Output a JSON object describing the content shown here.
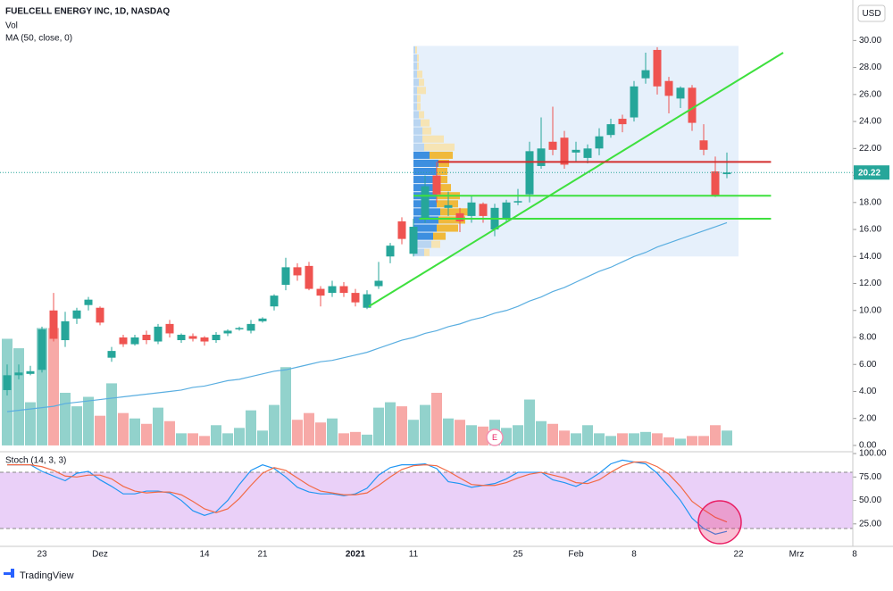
{
  "chart_data": {
    "type": "candlestick",
    "title": "FUELCELL ENERGY INC, 1D, NASDAQ",
    "currency": "USD",
    "brand": "TradingView",
    "categories": [
      null,
      null,
      null,
      "23",
      null,
      null,
      null,
      null,
      "Dez",
      null,
      null,
      null,
      null,
      null,
      null,
      null,
      null,
      "14",
      null,
      null,
      null,
      null,
      "21",
      null,
      null,
      null,
      null,
      null,
      null,
      null,
      "2021",
      null,
      null,
      null,
      null,
      "11",
      null,
      null,
      null,
      null,
      null,
      null,
      null,
      null,
      "25",
      null,
      null,
      null,
      null,
      "Feb",
      null,
      null,
      null,
      null,
      "8",
      null,
      null,
      null,
      null,
      null,
      null,
      null,
      null,
      "22",
      null,
      null,
      null,
      null,
      "Mrz",
      null,
      null,
      null,
      null,
      "8"
    ],
    "up_color": "#26a69a",
    "down_color": "#ef5350",
    "ohlc": {
      "open": [
        4.1,
        5.2,
        5.3,
        5.6,
        10.0,
        7.8,
        9.4,
        10.4,
        10.2,
        6.5,
        8.0,
        7.5,
        8.2,
        7.7,
        9.0,
        7.8,
        8.1,
        8.0,
        7.8,
        8.3,
        8.6,
        8.5,
        9.2,
        10.3,
        11.9,
        13.2,
        13.3,
        11.6,
        11.3,
        11.8,
        11.3,
        10.2,
        11.8,
        14.0,
        16.6,
        14.2,
        16.8,
        20.0,
        17.6,
        17.2,
        17.0,
        17.9,
        16.0,
        16.8,
        18.0,
        18.6,
        20.7,
        22.5,
        22.8,
        21.7,
        21.3,
        22.0,
        23.0,
        24.2,
        24.3,
        27.2,
        29.3,
        27.0,
        25.7,
        26.5,
        22.6,
        20.3,
        20.1,
        null,
        null,
        null,
        null,
        null,
        null,
        null,
        null,
        null,
        null,
        null
      ],
      "high": [
        6.0,
        6.0,
        5.9,
        8.8,
        11.3,
        9.9,
        10.2,
        11.0,
        10.3,
        7.3,
        8.2,
        8.2,
        8.5,
        9.0,
        9.3,
        8.3,
        8.3,
        8.1,
        8.4,
        8.6,
        8.8,
        9.3,
        9.5,
        11.2,
        13.9,
        13.5,
        13.6,
        11.8,
        12.2,
        12.1,
        11.6,
        11.5,
        13.6,
        15.0,
        16.9,
        16.8,
        20.0,
        21.0,
        18.8,
        17.6,
        18.5,
        18.0,
        17.9,
        18.2,
        19.0,
        22.5,
        24.3,
        25.1,
        23.3,
        22.5,
        22.3,
        23.5,
        24.2,
        24.5,
        27.0,
        29.1,
        29.5,
        27.3,
        26.6,
        26.7,
        23.8,
        21.4,
        21.7,
        null,
        null,
        null,
        null,
        null,
        null,
        null,
        null,
        null,
        null,
        null
      ],
      "low": [
        3.7,
        4.9,
        5.2,
        5.4,
        7.7,
        7.3,
        9.0,
        10.0,
        8.9,
        6.2,
        7.3,
        7.4,
        7.5,
        7.5,
        8.0,
        7.6,
        7.7,
        7.4,
        7.6,
        8.1,
        8.5,
        8.3,
        9.1,
        10.0,
        11.5,
        12.2,
        11.5,
        10.3,
        11.0,
        11.0,
        10.3,
        10.1,
        11.6,
        13.5,
        14.9,
        14.0,
        16.5,
        18.0,
        17.0,
        15.8,
        16.5,
        16.5,
        15.5,
        16.5,
        17.8,
        18.0,
        20.5,
        21.5,
        20.5,
        21.0,
        20.9,
        21.5,
        22.8,
        23.2,
        24.0,
        26.8,
        26.0,
        24.6,
        25.0,
        23.3,
        21.5,
        18.4,
        19.8,
        null,
        null,
        null,
        null,
        null,
        null,
        null,
        null,
        null,
        null,
        null
      ],
      "close": [
        5.2,
        5.4,
        5.5,
        8.6,
        7.9,
        9.2,
        10.0,
        10.8,
        9.1,
        7.0,
        7.5,
        8.0,
        7.8,
        8.8,
        8.3,
        8.2,
        7.9,
        7.7,
        8.2,
        8.5,
        8.7,
        9.0,
        9.4,
        11.1,
        13.2,
        12.6,
        11.6,
        11.1,
        11.8,
        11.3,
        10.6,
        11.2,
        12.2,
        14.8,
        15.3,
        16.2,
        19.2,
        18.6,
        17.8,
        16.6,
        18.0,
        17.0,
        17.6,
        18.0,
        18.1,
        21.8,
        22.0,
        21.9,
        20.8,
        21.9,
        22.0,
        22.9,
        23.8,
        23.8,
        26.6,
        27.8,
        26.6,
        25.9,
        26.5,
        23.9,
        21.9,
        18.5,
        20.22,
        null,
        null,
        null,
        null,
        null,
        null,
        null,
        null,
        null,
        null,
        null
      ]
    },
    "volume": {
      "name": "Vol",
      "values": [
        7.9,
        7.2,
        3.2,
        8.7,
        8.7,
        3.9,
        2.9,
        3.6,
        2.2,
        4.6,
        2.4,
        2.0,
        1.6,
        2.8,
        1.8,
        0.9,
        0.9,
        0.7,
        1.5,
        0.9,
        1.3,
        2.6,
        1.1,
        3.0,
        5.8,
        1.9,
        2.4,
        1.7,
        2.0,
        0.9,
        1.0,
        0.8,
        2.8,
        3.2,
        2.9,
        1.9,
        3.0,
        3.9,
        2.0,
        1.9,
        1.5,
        1.4,
        1.9,
        1.3,
        1.5,
        3.4,
        1.8,
        1.6,
        1.1,
        0.9,
        1.5,
        0.9,
        0.7,
        0.9,
        0.9,
        1.0,
        0.9,
        0.6,
        0.5,
        0.7,
        0.7,
        1.5,
        1.1,
        null,
        null,
        null,
        null,
        null,
        null,
        null,
        null,
        null,
        null,
        null
      ]
    },
    "ma": {
      "name": "MA (50, close, 0)",
      "color": "#5aaee0",
      "values": [
        2.5,
        2.6,
        2.7,
        2.8,
        2.9,
        3.1,
        3.2,
        3.3,
        3.4,
        3.5,
        3.6,
        3.7,
        3.8,
        3.9,
        4.0,
        4.1,
        4.3,
        4.4,
        4.6,
        4.8,
        4.9,
        5.1,
        5.3,
        5.5,
        5.6,
        5.8,
        6.0,
        6.2,
        6.3,
        6.5,
        6.7,
        6.9,
        7.2,
        7.5,
        7.8,
        8.0,
        8.3,
        8.5,
        8.8,
        9.0,
        9.3,
        9.5,
        9.8,
        10.0,
        10.3,
        10.7,
        11.0,
        11.4,
        11.7,
        12.1,
        12.5,
        12.9,
        13.2,
        13.6,
        14.0,
        14.3,
        14.7,
        15.0,
        15.3,
        15.6,
        15.9,
        16.2,
        16.5,
        null,
        null,
        null,
        null,
        null,
        null,
        null,
        null,
        null,
        null,
        null
      ]
    },
    "ylim": [
      -0.4,
      33.0
    ],
    "yticks": [
      {
        "value": 0,
        "label": "0.00"
      },
      {
        "value": 2,
        "label": "2.00"
      },
      {
        "value": 4,
        "label": "4.00"
      },
      {
        "value": 6,
        "label": "6.00"
      },
      {
        "value": 8,
        "label": "8.00"
      },
      {
        "value": 10,
        "label": "10.00"
      },
      {
        "value": 12,
        "label": "12.00"
      },
      {
        "value": 14,
        "label": "14.00"
      },
      {
        "value": 16,
        "label": "16.00"
      },
      {
        "value": 18,
        "label": "18.00"
      },
      {
        "value": 20,
        "label": "20.00"
      },
      {
        "value": 22,
        "label": "22.00"
      },
      {
        "value": 24,
        "label": "24.00"
      },
      {
        "value": 26,
        "label": "26.00"
      },
      {
        "value": 28,
        "label": "28.00"
      },
      {
        "value": 30,
        "label": "30.00"
      }
    ],
    "last_price": 20.22,
    "volume_profile": {
      "x_range": [
        35,
        63
      ],
      "row_size": 0.6,
      "value_area": [
        15.2,
        21.8
      ],
      "background": "#e6f0fb",
      "up_color": "#3d8fe0",
      "down_color": "#f0b93b",
      "up_color_faded": "#b9d5f1",
      "down_color_faded": "#f6e4b4",
      "levels": [
        14.0,
        14.6,
        15.2,
        15.8,
        16.4,
        17.0,
        17.6,
        18.2,
        18.8,
        19.4,
        20.0,
        20.6,
        21.2,
        21.8,
        22.4,
        23.0,
        23.6,
        24.2,
        24.8,
        25.4,
        26.0,
        26.6,
        27.2,
        27.8,
        28.4,
        29.0
      ],
      "up": [
        1.2,
        2.0,
        2.2,
        2.6,
        2.8,
        3.0,
        2.6,
        2.6,
        2.2,
        2.4,
        2.6,
        2.8,
        1.8,
        1.2,
        1.0,
        1.0,
        0.8,
        0.6,
        0.4,
        0.4,
        0.4,
        0.6,
        0.4,
        0.4,
        0.4,
        0.2
      ],
      "down": [
        0.6,
        1.0,
        1.4,
        2.4,
        3.0,
        3.6,
        2.4,
        2.6,
        2.0,
        1.4,
        1.2,
        1.2,
        2.6,
        3.4,
        2.4,
        1.0,
        1.0,
        0.6,
        0.4,
        0.4,
        1.0,
        0.6,
        0.6,
        0.2,
        0.2,
        0.2
      ]
    },
    "drawings": [
      {
        "type": "trendline",
        "color": "#3ee03e",
        "x": [
          31.15,
          66.85
        ],
        "y": [
          10.3,
          29.1
        ]
      },
      {
        "type": "hline",
        "color": "#3ee03e",
        "x": [
          35,
          65.8
        ],
        "y": [
          18.5,
          18.5
        ]
      },
      {
        "type": "hline",
        "color": "#3ee03e",
        "x": [
          35.5,
          65.8
        ],
        "y": [
          16.8,
          16.8
        ]
      },
      {
        "type": "hline",
        "color": "#d32f2f",
        "x": [
          37.1,
          65.8
        ],
        "y": [
          21.0,
          21.0
        ]
      }
    ],
    "events": [
      {
        "label": "E",
        "at": 42
      }
    ],
    "stoch": {
      "name": "Stoch (14, 3, 3)",
      "type": "line",
      "ylim": [
        1,
        101
      ],
      "yticks": [
        {
          "value": 25,
          "label": "25.00"
        },
        {
          "value": 50,
          "label": "50.00"
        },
        {
          "value": 75,
          "label": "75.00"
        },
        {
          "value": 100,
          "label": "100.00"
        }
      ],
      "band": [
        20,
        80
      ],
      "band_color": "#e6c8f7",
      "series": [
        {
          "color": "#2196f3",
          "values": [
            88,
            88,
            88,
            81,
            76,
            71,
            79,
            81,
            72,
            65,
            57,
            57,
            60,
            60,
            58,
            50,
            39,
            34,
            38,
            50,
            67,
            82,
            88,
            84,
            75,
            64,
            59,
            57,
            57,
            55,
            57,
            63,
            77,
            85,
            88,
            88,
            89,
            84,
            70,
            68,
            64,
            66,
            68,
            73,
            80,
            80,
            80,
            72,
            69,
            65,
            71,
            79,
            89,
            93,
            91,
            89,
            79,
            65,
            50,
            31,
            20,
            14,
            17,
            null,
            null,
            null,
            null,
            null,
            null,
            null,
            null,
            null,
            null,
            null
          ]
        },
        {
          "color": "#f26a45",
          "values": [
            88,
            88,
            88,
            86,
            82,
            76,
            75,
            77,
            77,
            73,
            65,
            60,
            58,
            59,
            59,
            56,
            49,
            41,
            37,
            41,
            52,
            66,
            79,
            85,
            82,
            74,
            66,
            60,
            58,
            56,
            56,
            58,
            66,
            75,
            83,
            87,
            88,
            87,
            81,
            74,
            67,
            66,
            66,
            69,
            74,
            78,
            80,
            77,
            74,
            69,
            68,
            72,
            80,
            87,
            91,
            91,
            86,
            78,
            65,
            49,
            40,
            32,
            27,
            null,
            null,
            null,
            null,
            null,
            null,
            null,
            null,
            null,
            null,
            null
          ]
        }
      ]
    }
  }
}
